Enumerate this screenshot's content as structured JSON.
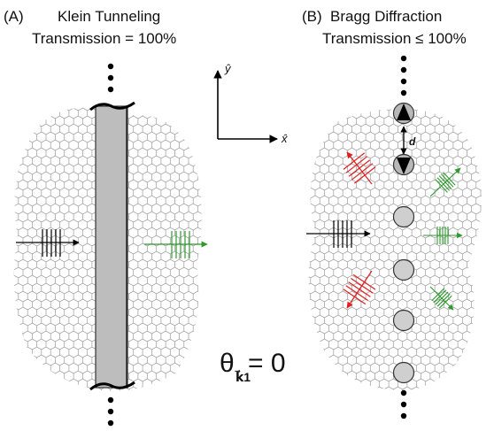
{
  "panel_a": {
    "tag": "(A)",
    "title": "Klein Tunneling",
    "transmission": "Transmission = 100%"
  },
  "panel_b": {
    "tag": "(B)",
    "title": "Bragg Diffraction",
    "transmission": "Transmission ≤ 100%",
    "spacing_label": "d"
  },
  "axes": {
    "x_label": "x̂",
    "y_label": "ŷ"
  },
  "equation": {
    "theta": "θ",
    "subscript": "k⃗1",
    "rhs": " = 0"
  },
  "colors": {
    "incident": "#000000",
    "transmitted": "#2e9a2e",
    "reflected": "#e02020",
    "barrier_fill": "#bdbdbd",
    "scatterer_fill": "#cfcfcf",
    "lattice_stroke": "#9a9a9a"
  }
}
